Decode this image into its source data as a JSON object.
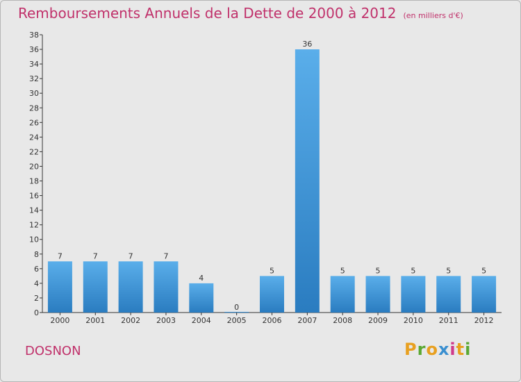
{
  "chart_data": {
    "type": "bar",
    "title": "Remboursements Annuels de la Dette de 2000 à 2012",
    "subtitle": "(en milliers d'€)",
    "categories": [
      "2000",
      "2001",
      "2002",
      "2003",
      "2004",
      "2005",
      "2006",
      "2007",
      "2008",
      "2009",
      "2010",
      "2011",
      "2012"
    ],
    "values": [
      7,
      7,
      7,
      7,
      4,
      0,
      5,
      36,
      5,
      5,
      5,
      5,
      5
    ],
    "ylim": [
      0,
      38
    ],
    "yticks": [
      0,
      2,
      4,
      6,
      8,
      10,
      12,
      14,
      16,
      18,
      20,
      22,
      24,
      26,
      28,
      30,
      32,
      34,
      36,
      38
    ],
    "xlabel": "",
    "ylabel": "",
    "grid": false,
    "bar_color": "#3d94d8"
  },
  "commune": "DOSNON",
  "logo": {
    "letters": [
      "P",
      "r",
      "o",
      "x",
      "i",
      "t",
      "i"
    ],
    "colors": [
      "#e8a020",
      "#5aa832",
      "#e8a020",
      "#3a8fd0",
      "#d03a8a",
      "#e8a020",
      "#5aa832"
    ]
  },
  "colors": {
    "title": "#c0306a",
    "axis": "#333333"
  }
}
